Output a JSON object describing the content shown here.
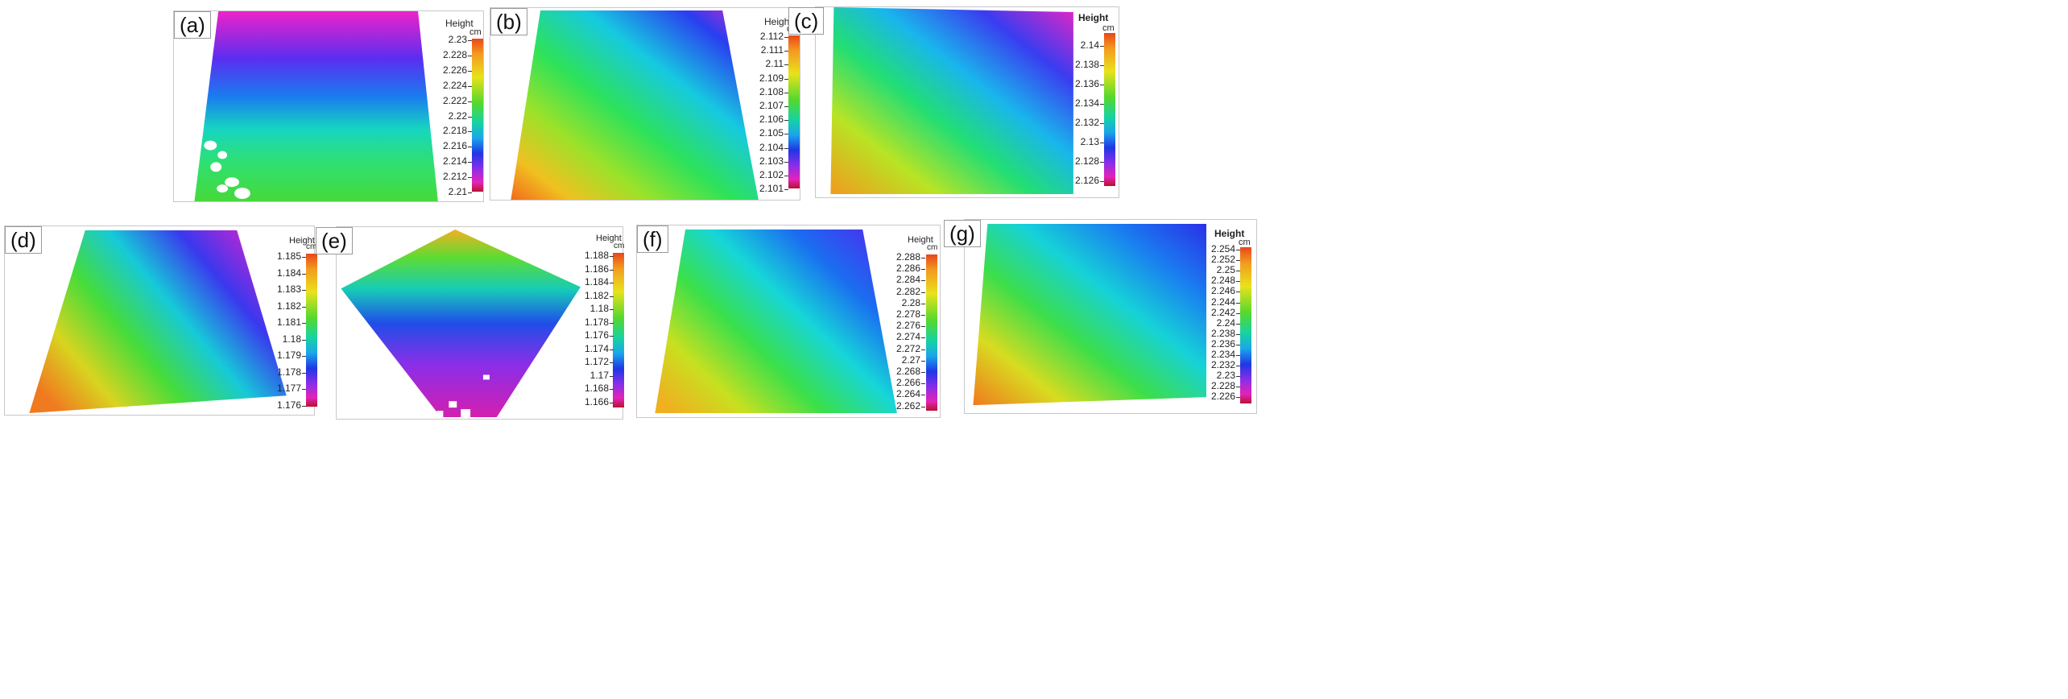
{
  "legend": {
    "title": "Height",
    "unit": "cm"
  },
  "panels": [
    {
      "label": "(a)",
      "ticks": [
        "2.23",
        "2.228",
        "2.226",
        "2.224",
        "2.222",
        "2.22",
        "2.218",
        "2.216",
        "2.214",
        "2.212",
        "2.21"
      ]
    },
    {
      "label": "(b)",
      "ticks": [
        "2.112",
        "2.111",
        "2.11",
        "2.109",
        "2.108",
        "2.107",
        "2.106",
        "2.105",
        "2.104",
        "2.103",
        "2.102",
        "2.101"
      ]
    },
    {
      "label": "(c)",
      "ticks": [
        "2.14",
        "2.138",
        "2.136",
        "2.134",
        "2.132",
        "2.13",
        "2.128",
        "2.126"
      ]
    },
    {
      "label": "(d)",
      "ticks": [
        "1.185",
        "1.184",
        "1.183",
        "1.182",
        "1.181",
        "1.18",
        "1.179",
        "1.178",
        "1.177",
        "1.176"
      ]
    },
    {
      "label": "(e)",
      "ticks": [
        "1.188",
        "1.186",
        "1.184",
        "1.182",
        "1.18",
        "1.178",
        "1.176",
        "1.174",
        "1.172",
        "1.17",
        "1.168",
        "1.166"
      ]
    },
    {
      "label": "(f)",
      "ticks": [
        "2.288",
        "2.286",
        "2.284",
        "2.282",
        "2.28",
        "2.278",
        "2.276",
        "2.274",
        "2.272",
        "2.27",
        "2.268",
        "2.266",
        "2.264",
        "2.262"
      ]
    },
    {
      "label": "(g)",
      "ticks": [
        "2.254",
        "2.252",
        "2.25",
        "2.248",
        "2.246",
        "2.244",
        "2.242",
        "2.24",
        "2.238",
        "2.236",
        "2.234",
        "2.232",
        "2.23",
        "2.228",
        "2.226"
      ]
    }
  ]
}
